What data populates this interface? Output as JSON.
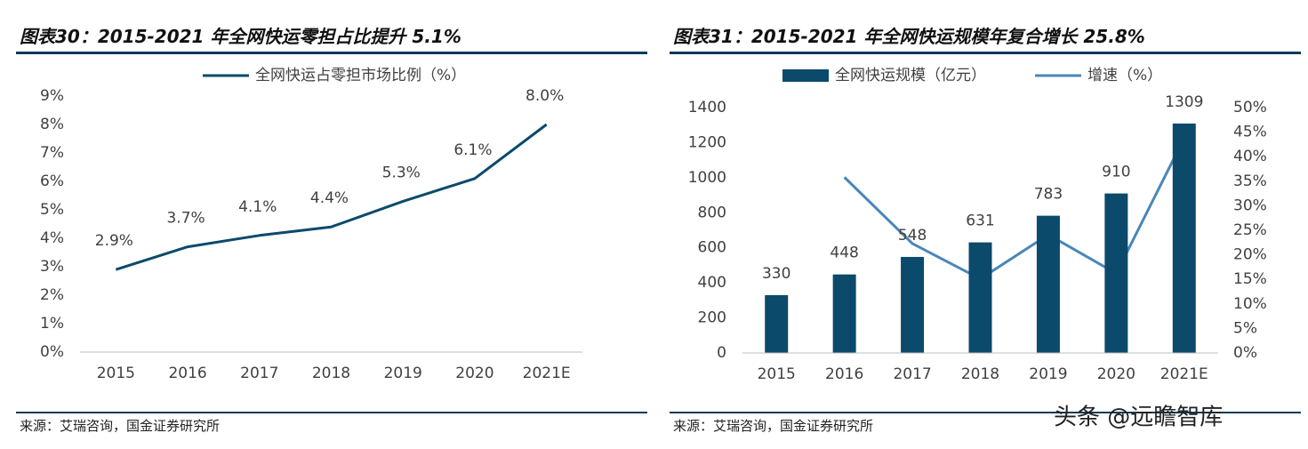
{
  "chart_data": [
    {
      "type": "line",
      "title": "图表30：2015-2021 年全网快运零担占比提升 5.1%",
      "categories": [
        "2015",
        "2016",
        "2017",
        "2018",
        "2019",
        "2020",
        "2021E"
      ],
      "series": [
        {
          "name": "全网快运占零担市场比例（%）",
          "color": "#0b4a6b",
          "values": [
            2.9,
            3.7,
            4.1,
            4.4,
            5.3,
            6.1,
            8.0
          ],
          "value_labels": [
            "2.9%",
            "3.7%",
            "4.1%",
            "4.4%",
            "5.3%",
            "6.1%",
            "8.0%"
          ]
        }
      ],
      "ylim": [
        0,
        9
      ],
      "yticks": [
        {
          "value": 0,
          "label": "0%"
        },
        {
          "value": 1,
          "label": "1%"
        },
        {
          "value": 2,
          "label": "2%"
        },
        {
          "value": 3,
          "label": "3%"
        },
        {
          "value": 4,
          "label": "4%"
        },
        {
          "value": 5,
          "label": "5%"
        },
        {
          "value": 6,
          "label": "6%"
        },
        {
          "value": 7,
          "label": "7%"
        },
        {
          "value": 8,
          "label": "8%"
        },
        {
          "value": 9,
          "label": "9%"
        }
      ],
      "legend": "top",
      "grid": false,
      "source": "来源：艾瑞咨询，国金证券研究所"
    },
    {
      "type": "combo",
      "title": "图表31：2015-2021 年全网快运规模年复合增长 25.8%",
      "categories": [
        "2015",
        "2016",
        "2017",
        "2018",
        "2019",
        "2020",
        "2021E"
      ],
      "series": [
        {
          "name": "全网快运规模（亿元）",
          "type": "bar",
          "color": "#0b4a6b",
          "values": [
            330,
            448,
            548,
            631,
            783,
            910,
            1309
          ]
        },
        {
          "name": "增速（%）",
          "type": "line",
          "axis": "y2",
          "color": "#4a86b8",
          "values": [
            null,
            35.8,
            22.3,
            15.1,
            24.1,
            16.2,
            43.8
          ]
        }
      ],
      "ylim": [
        0,
        1400
      ],
      "yticks": [
        0,
        200,
        400,
        600,
        800,
        1000,
        1200,
        1400
      ],
      "y2lim": [
        0,
        50
      ],
      "y2ticks": [
        {
          "value": 0,
          "label": "0%"
        },
        {
          "value": 5,
          "label": "5%"
        },
        {
          "value": 10,
          "label": "10%"
        },
        {
          "value": 15,
          "label": "15%"
        },
        {
          "value": 20,
          "label": "20%"
        },
        {
          "value": 25,
          "label": "25%"
        },
        {
          "value": 30,
          "label": "30%"
        },
        {
          "value": 35,
          "label": "35%"
        },
        {
          "value": 40,
          "label": "40%"
        },
        {
          "value": 45,
          "label": "45%"
        },
        {
          "value": 50,
          "label": "50%"
        }
      ],
      "legend": "top",
      "grid": false,
      "source": "来源：艾瑞咨询，国金证券研究所"
    }
  ],
  "watermark": "头条 @远瞻智库"
}
